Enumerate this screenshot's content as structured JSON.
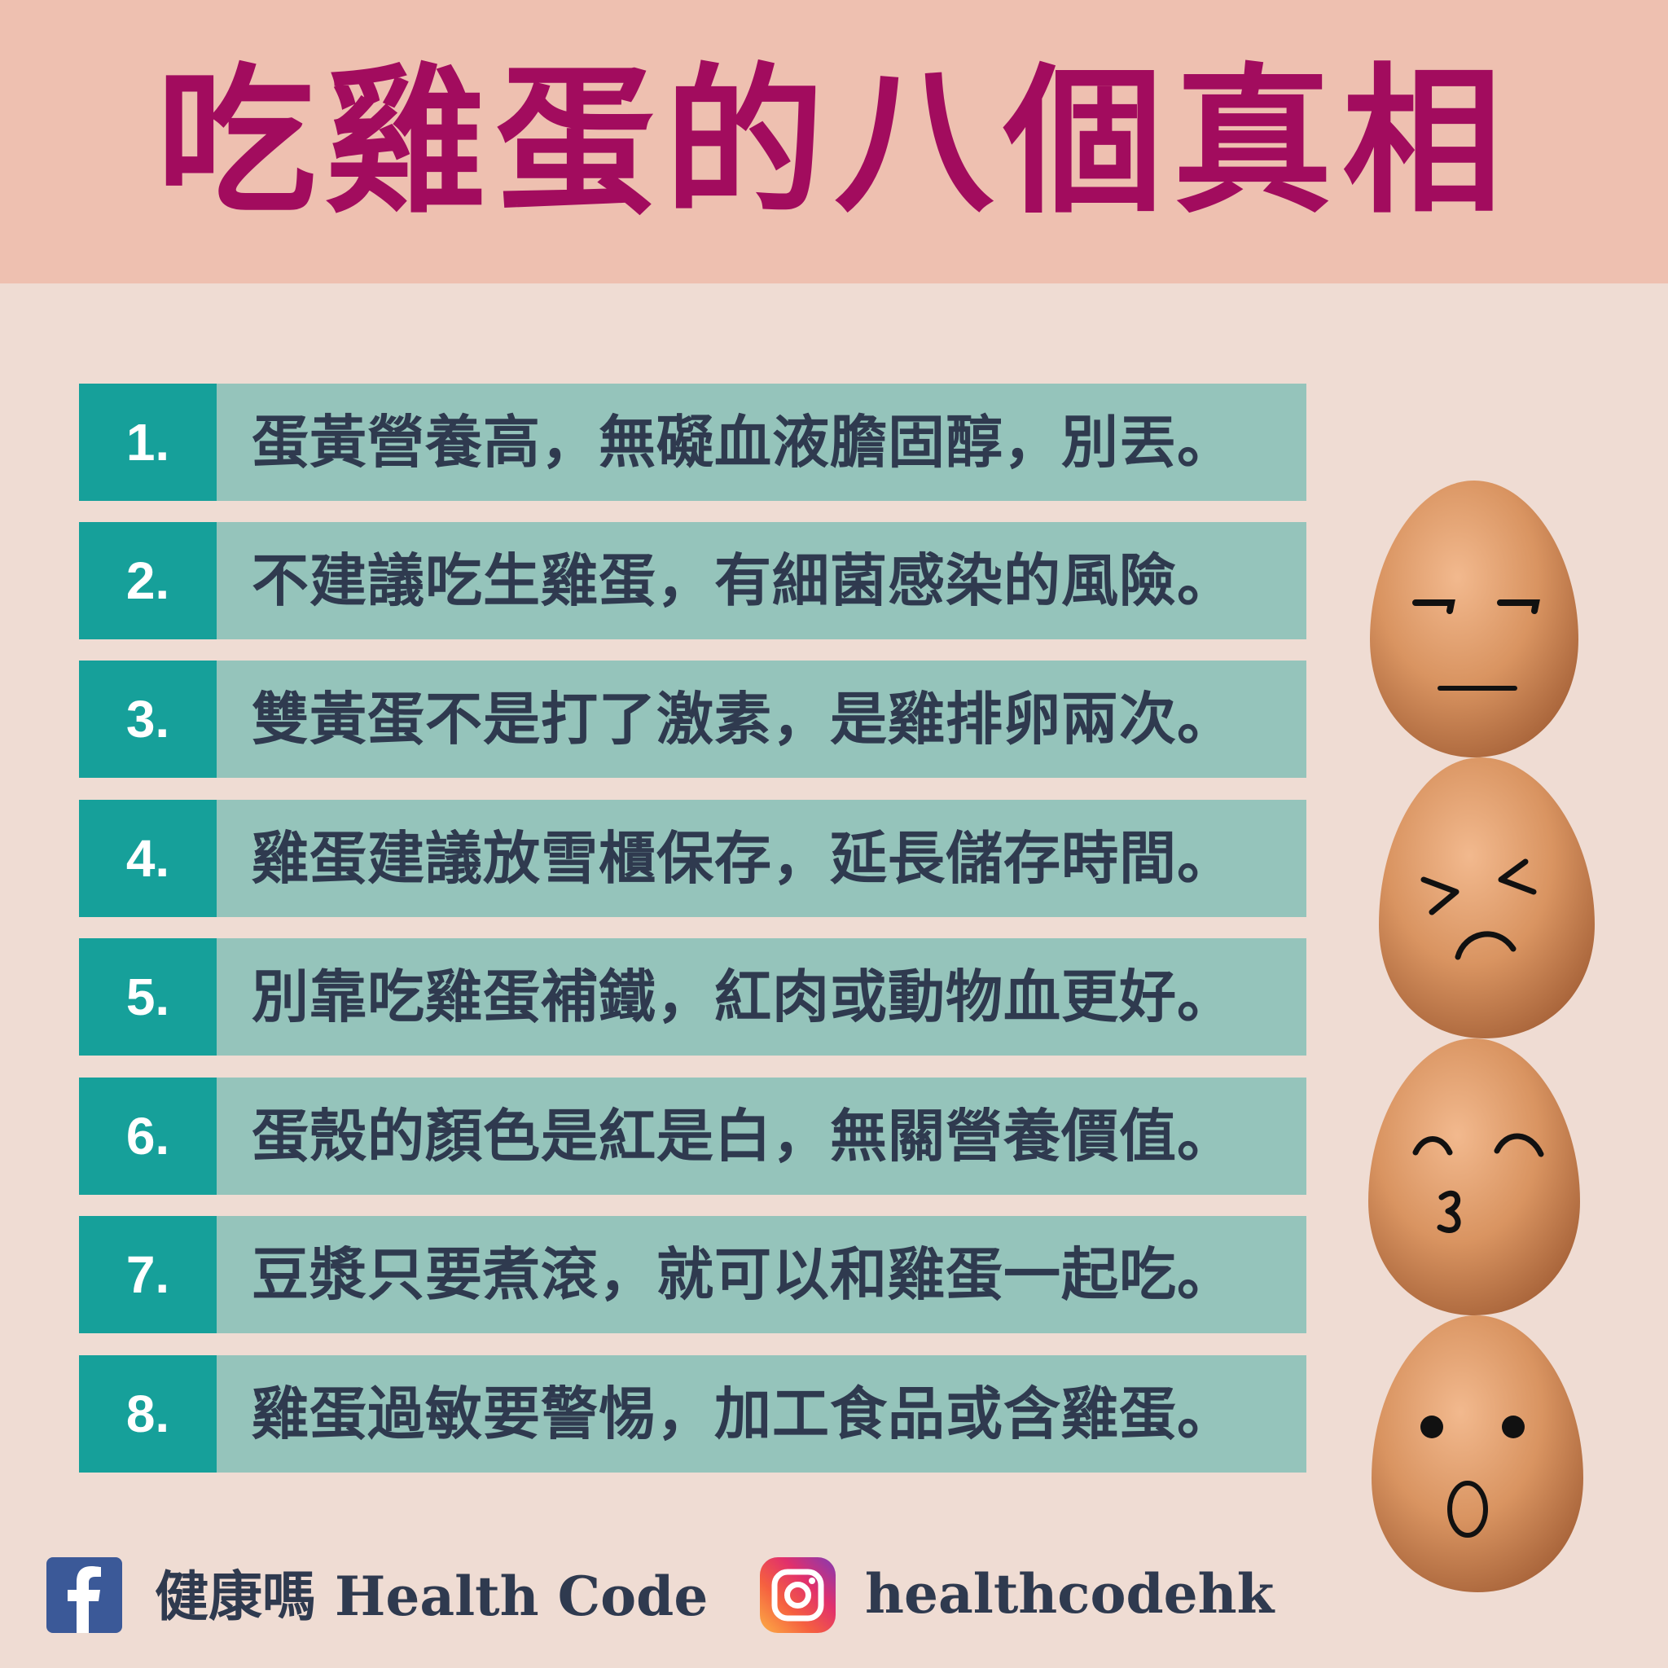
{
  "header": {
    "title": "吃雞蛋的八個真相",
    "title_color": "#a20c5e",
    "band_color": "#eec0b0"
  },
  "items": [
    {
      "number": "1.",
      "text": "蛋黃營養高，無礙血液膽固醇，別丟。"
    },
    {
      "number": "2.",
      "text": "不建議吃生雞蛋，有細菌感染的風險。"
    },
    {
      "number": "3.",
      "text": "雙黃蛋不是打了激素，是雞排卵兩次。"
    },
    {
      "number": "4.",
      "text": "雞蛋建議放雪櫃保存，延長儲存時間。"
    },
    {
      "number": "5.",
      "text": "別靠吃雞蛋補鐵，紅肉或動物血更好。"
    },
    {
      "number": "6.",
      "text": "蛋殼的顏色是紅是白，無關營養價值。"
    },
    {
      "number": "7.",
      "text": "豆漿只要煮滾，就可以和雞蛋一起吃。"
    },
    {
      "number": "8.",
      "text": "雞蛋過敏要警惕，加工食品或含雞蛋。"
    }
  ],
  "colors": {
    "number_box": "#16a09a",
    "row_bg": "#95c4bb",
    "row_text": "#2f3a4f",
    "page_bg": "#efdcd3"
  },
  "eggs": [
    {
      "face": "unimpressed"
    },
    {
      "face": "upset"
    },
    {
      "face": "kissing"
    },
    {
      "face": "surprised"
    }
  ],
  "footer": {
    "facebook_icon": "facebook-icon",
    "facebook_name_zh": "健康嗎",
    "facebook_name_en": "Health Code",
    "instagram_icon": "instagram-icon",
    "instagram_handle": "healthcodehk"
  }
}
